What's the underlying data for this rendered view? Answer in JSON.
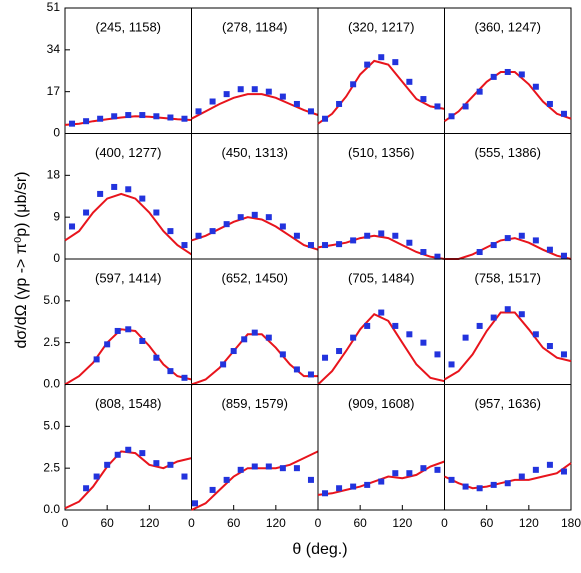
{
  "xlabel": "θ (deg.)",
  "ylabel": "dσ/dΩ (γp -> π⁰p) (μb/sr)",
  "chart_data": [
    {
      "type": "scatter",
      "title": "(245, 1158)",
      "xlim": [
        0,
        180
      ],
      "ylim": [
        0,
        51
      ],
      "yticks": [
        0,
        17,
        34,
        51
      ],
      "points": {
        "color": "#2233dd",
        "x": [
          10,
          30,
          50,
          70,
          90,
          110,
          130,
          150,
          170
        ],
        "y": [
          4,
          5,
          6,
          7,
          7.5,
          7.5,
          7,
          6.5,
          6
        ]
      },
      "curve": {
        "color": "#e8141c",
        "x": [
          0,
          20,
          40,
          60,
          80,
          100,
          120,
          140,
          160,
          180
        ],
        "y": [
          3.5,
          4,
          5,
          5.8,
          6.5,
          7,
          6.8,
          6.3,
          5.8,
          5.5
        ]
      }
    },
    {
      "type": "scatter",
      "title": "(278, 1184)",
      "xlim": [
        0,
        180
      ],
      "ylim": [
        0,
        51
      ],
      "points": {
        "color": "#2233dd",
        "x": [
          10,
          30,
          50,
          70,
          90,
          110,
          130,
          150,
          170
        ],
        "y": [
          9,
          13,
          16,
          18,
          18,
          17,
          15,
          12,
          9
        ]
      },
      "curve": {
        "color": "#e8141c",
        "x": [
          0,
          20,
          40,
          60,
          80,
          100,
          120,
          140,
          160,
          180
        ],
        "y": [
          6,
          9,
          12,
          14.5,
          16,
          16,
          14.5,
          12,
          9.5,
          7.5
        ]
      }
    },
    {
      "type": "scatter",
      "title": "(320, 1217)",
      "xlim": [
        0,
        180
      ],
      "ylim": [
        0,
        51
      ],
      "points": {
        "color": "#2233dd",
        "x": [
          10,
          30,
          50,
          70,
          90,
          110,
          130,
          150,
          170
        ],
        "y": [
          6,
          12,
          20,
          28,
          31,
          29,
          21,
          14,
          11
        ]
      },
      "curve": {
        "color": "#e8141c",
        "x": [
          0,
          20,
          40,
          60,
          80,
          100,
          120,
          140,
          160,
          180
        ],
        "y": [
          4,
          8,
          15,
          24,
          29.5,
          28,
          21,
          14,
          11,
          10
        ]
      }
    },
    {
      "type": "scatter",
      "title": "(360, 1247)",
      "xlim": [
        0,
        180
      ],
      "ylim": [
        0,
        51
      ],
      "points": {
        "color": "#2233dd",
        "x": [
          10,
          30,
          50,
          70,
          90,
          110,
          130,
          150,
          170
        ],
        "y": [
          7,
          11,
          17,
          23,
          25,
          24,
          19,
          12,
          8
        ]
      },
      "curve": {
        "color": "#e8141c",
        "x": [
          0,
          20,
          40,
          60,
          80,
          100,
          120,
          140,
          160,
          180
        ],
        "y": [
          5,
          9,
          15,
          21,
          25,
          25,
          20,
          13,
          8,
          6
        ]
      }
    },
    {
      "type": "scatter",
      "title": "(400, 1277)",
      "xlim": [
        0,
        180
      ],
      "ylim": [
        0,
        27
      ],
      "yticks": [
        0,
        9,
        18
      ],
      "points": {
        "color": "#2233dd",
        "x": [
          10,
          30,
          50,
          70,
          90,
          110,
          130,
          150,
          170
        ],
        "y": [
          7,
          10,
          14,
          15.5,
          15,
          13,
          10,
          6,
          3
        ]
      },
      "curve": {
        "color": "#e8141c",
        "x": [
          0,
          20,
          40,
          60,
          80,
          100,
          120,
          140,
          160,
          180
        ],
        "y": [
          4,
          6,
          10,
          13,
          14,
          13,
          10,
          6,
          3,
          1
        ]
      }
    },
    {
      "type": "scatter",
      "title": "(450, 1313)",
      "xlim": [
        0,
        180
      ],
      "ylim": [
        0,
        27
      ],
      "points": {
        "color": "#2233dd",
        "x": [
          10,
          30,
          50,
          70,
          90,
          110,
          130,
          150,
          170
        ],
        "y": [
          5,
          6,
          7.5,
          9,
          9.5,
          9,
          7,
          5,
          3
        ]
      },
      "curve": {
        "color": "#e8141c",
        "x": [
          0,
          20,
          40,
          60,
          80,
          100,
          120,
          140,
          160,
          180
        ],
        "y": [
          4,
          5,
          6.5,
          8,
          9,
          8.5,
          7,
          5,
          3,
          2
        ]
      }
    },
    {
      "type": "scatter",
      "title": "(510, 1356)",
      "xlim": [
        0,
        180
      ],
      "ylim": [
        0,
        27
      ],
      "points": {
        "color": "#2233dd",
        "x": [
          10,
          30,
          50,
          70,
          90,
          110,
          130,
          150,
          170
        ],
        "y": [
          3,
          3.2,
          4,
          5,
          5.5,
          5,
          3.5,
          1.5,
          0.5
        ]
      },
      "curve": {
        "color": "#e8141c",
        "x": [
          0,
          20,
          40,
          60,
          80,
          100,
          120,
          140,
          160,
          180
        ],
        "y": [
          2.5,
          3,
          3.5,
          4.5,
          5,
          4.5,
          3,
          1.5,
          0.5,
          0
        ]
      }
    },
    {
      "type": "scatter",
      "title": "(555, 1386)",
      "xlim": [
        0,
        180
      ],
      "ylim": [
        0,
        27
      ],
      "points": {
        "color": "#2233dd",
        "x": [
          50,
          70,
          90,
          110,
          130,
          150,
          170
        ],
        "y": [
          1.5,
          3,
          4.5,
          5,
          4,
          2,
          0.7
        ]
      },
      "curve": {
        "color": "#e8141c",
        "x": [
          0,
          20,
          40,
          60,
          80,
          100,
          120,
          140,
          160,
          180
        ],
        "y": [
          0,
          0,
          1,
          2.5,
          4,
          4.5,
          3.5,
          2,
          0.7,
          0
        ]
      }
    },
    {
      "type": "scatter",
      "title": "(597, 1414)",
      "xlim": [
        0,
        180
      ],
      "ylim": [
        0,
        7.5
      ],
      "yticks": [
        {
          "value": 0,
          "label": "0.0"
        },
        2.5,
        {
          "value": 5,
          "label": "5.0"
        }
      ],
      "points": {
        "color": "#2233dd",
        "x": [
          45,
          60,
          75,
          90,
          110,
          130,
          150,
          170
        ],
        "y": [
          1.5,
          2.4,
          3.2,
          3.3,
          2.6,
          1.6,
          0.8,
          0.4
        ]
      },
      "curve": {
        "color": "#e8141c",
        "x": [
          0,
          20,
          40,
          60,
          80,
          100,
          120,
          140,
          160,
          180
        ],
        "y": [
          0,
          0.5,
          1.3,
          2.5,
          3.3,
          3.2,
          2.3,
          1.2,
          0.5,
          0.3
        ]
      }
    },
    {
      "type": "scatter",
      "title": "(652, 1450)",
      "xlim": [
        0,
        180
      ],
      "ylim": [
        0,
        7.5
      ],
      "points": {
        "color": "#2233dd",
        "x": [
          45,
          60,
          75,
          90,
          110,
          130,
          150,
          170
        ],
        "y": [
          1.2,
          2,
          2.7,
          3.1,
          2.8,
          1.8,
          0.9,
          0.6
        ]
      },
      "curve": {
        "color": "#e8141c",
        "x": [
          0,
          20,
          40,
          60,
          80,
          100,
          120,
          140,
          160,
          180
        ],
        "y": [
          0,
          0.3,
          1,
          2,
          3,
          3,
          2.2,
          1.2,
          0.5,
          0.5
        ]
      }
    },
    {
      "type": "scatter",
      "title": "(705, 1484)",
      "xlim": [
        0,
        180
      ],
      "ylim": [
        0,
        7.5
      ],
      "points": {
        "color": "#2233dd",
        "x": [
          10,
          30,
          50,
          70,
          90,
          110,
          130,
          150,
          170
        ],
        "y": [
          1.6,
          2,
          2.8,
          3.5,
          4.3,
          3.5,
          3,
          2.5,
          1.8
        ]
      },
      "curve": {
        "color": "#e8141c",
        "x": [
          0,
          20,
          40,
          60,
          80,
          100,
          120,
          140,
          160,
          180
        ],
        "y": [
          0,
          0.8,
          2,
          3.3,
          4.2,
          3.8,
          2.5,
          1.2,
          0.4,
          0.2
        ]
      }
    },
    {
      "type": "scatter",
      "title": "(758, 1517)",
      "xlim": [
        0,
        180
      ],
      "ylim": [
        0,
        7.5
      ],
      "points": {
        "color": "#2233dd",
        "x": [
          10,
          30,
          50,
          70,
          90,
          110,
          130,
          150,
          170
        ],
        "y": [
          1.2,
          2.8,
          3.5,
          4,
          4.5,
          4.2,
          3,
          2.3,
          1.8
        ]
      },
      "curve": {
        "color": "#e8141c",
        "x": [
          0,
          20,
          40,
          60,
          80,
          100,
          120,
          140,
          160,
          180
        ],
        "y": [
          0.3,
          0.8,
          1.8,
          3.2,
          4.3,
          4.3,
          3.3,
          2.2,
          1.6,
          1.4
        ]
      }
    },
    {
      "type": "scatter",
      "title": "(808, 1548)",
      "xlim": [
        0,
        180
      ],
      "ylim": [
        0,
        7.5
      ],
      "yticks": [
        {
          "value": 0,
          "label": "0.0"
        },
        2.5,
        {
          "value": 5,
          "label": "5.0"
        }
      ],
      "xticks": [
        0,
        60,
        120
      ],
      "points": {
        "color": "#2233dd",
        "x": [
          30,
          45,
          60,
          75,
          90,
          110,
          130,
          150,
          170
        ],
        "y": [
          1.3,
          2,
          2.7,
          3.3,
          3.6,
          3.4,
          2.8,
          2.7,
          2
        ]
      },
      "curve": {
        "color": "#e8141c",
        "x": [
          0,
          20,
          40,
          60,
          80,
          100,
          120,
          140,
          160,
          180
        ],
        "y": [
          0.1,
          0.5,
          1.4,
          2.6,
          3.5,
          3.4,
          2.7,
          2.5,
          2.9,
          3.1
        ]
      }
    },
    {
      "type": "scatter",
      "title": "(859, 1579)",
      "xlim": [
        0,
        180
      ],
      "ylim": [
        0,
        7.5
      ],
      "xticks": [
        0,
        60,
        120
      ],
      "points": {
        "color": "#2233dd",
        "x": [
          5,
          30,
          50,
          70,
          90,
          110,
          130,
          150,
          170
        ],
        "y": [
          0.4,
          1.2,
          1.8,
          2.4,
          2.6,
          2.6,
          2.5,
          2.5,
          1.8
        ]
      },
      "curve": {
        "color": "#e8141c",
        "x": [
          0,
          20,
          40,
          60,
          80,
          100,
          120,
          140,
          160,
          180
        ],
        "y": [
          0,
          0.4,
          1.2,
          2,
          2.5,
          2.5,
          2.5,
          2.7,
          3.1,
          3.5
        ]
      }
    },
    {
      "type": "scatter",
      "title": "(909, 1608)",
      "xlim": [
        0,
        180
      ],
      "ylim": [
        0,
        7.5
      ],
      "xticks": [
        0,
        60,
        120
      ],
      "points": {
        "color": "#2233dd",
        "x": [
          10,
          30,
          50,
          70,
          90,
          110,
          130,
          150,
          170
        ],
        "y": [
          1,
          1.3,
          1.4,
          1.5,
          1.7,
          2.2,
          2.2,
          2.5,
          2.4
        ]
      },
      "curve": {
        "color": "#e8141c",
        "x": [
          0,
          20,
          40,
          60,
          80,
          100,
          120,
          140,
          160,
          180
        ],
        "y": [
          0.9,
          1,
          1.2,
          1.4,
          1.7,
          2,
          1.9,
          2.1,
          2.6,
          2.9
        ]
      }
    },
    {
      "type": "scatter",
      "title": "(957, 1636)",
      "xlim": [
        0,
        180
      ],
      "ylim": [
        0,
        7.5
      ],
      "xticks": [
        0,
        60,
        120,
        180
      ],
      "points": {
        "color": "#2233dd",
        "x": [
          10,
          30,
          50,
          70,
          90,
          110,
          130,
          150,
          170
        ],
        "y": [
          1.8,
          1.4,
          1.3,
          1.5,
          1.6,
          2,
          2.4,
          2.7,
          2.3
        ]
      },
      "curve": {
        "color": "#e8141c",
        "x": [
          0,
          20,
          40,
          60,
          80,
          100,
          120,
          140,
          160,
          180
        ],
        "y": [
          2,
          1.6,
          1.3,
          1.4,
          1.6,
          1.8,
          1.8,
          2,
          2.2,
          2.8
        ]
      }
    }
  ]
}
